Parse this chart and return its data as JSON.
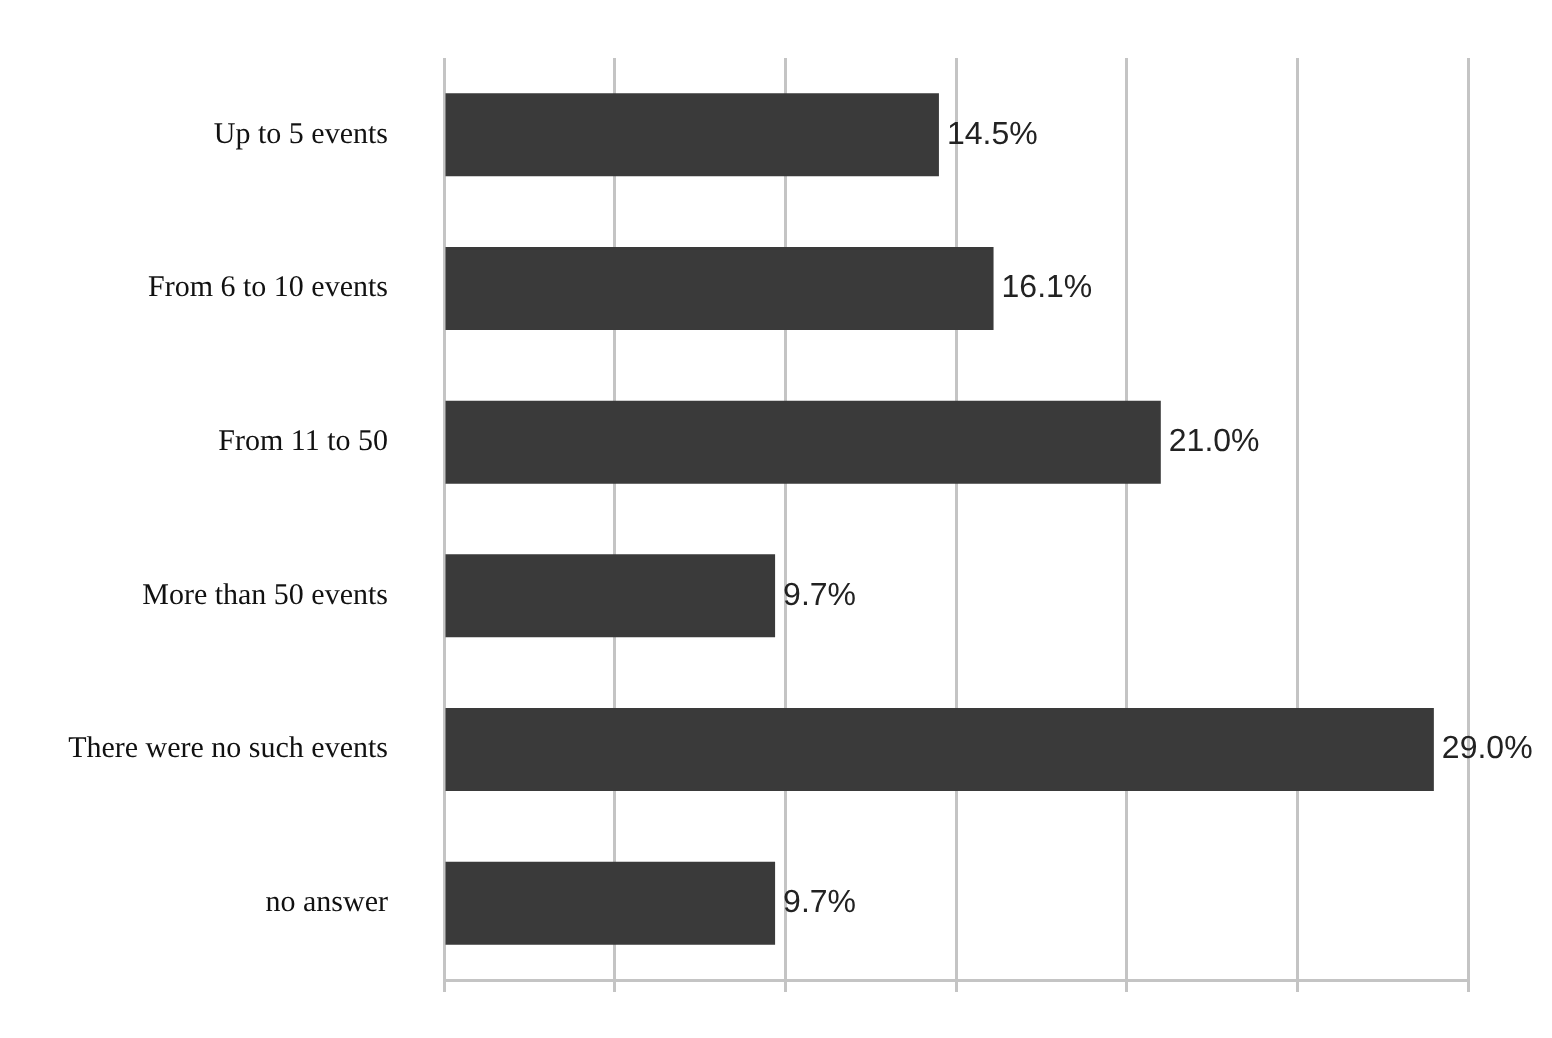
{
  "chart_data": {
    "type": "bar",
    "orientation": "horizontal",
    "categories": [
      "Up to 5 events",
      "From 6 to 10 events",
      "From 11 to 50",
      "More than 50 events",
      "There were no such events",
      "no answer"
    ],
    "values": [
      14.5,
      16.1,
      21.0,
      9.7,
      29.0,
      9.7
    ],
    "value_labels": [
      "14.5%",
      "16.1%",
      "21.0%",
      "9.7%",
      "29.0%",
      "9.7%"
    ],
    "color": "#3a3a3a",
    "xlim": [
      0,
      30
    ],
    "xticks": [
      {
        "value": 0,
        "label": null
      },
      {
        "value": 5,
        "label": null
      },
      {
        "value": 10,
        "label": null
      },
      {
        "value": 15,
        "label": null
      },
      {
        "value": 20,
        "label": null
      },
      {
        "value": 25,
        "label": null
      },
      {
        "value": 30,
        "label": null
      }
    ],
    "tick_labels": "y",
    "grid": "x",
    "legend": false
  }
}
